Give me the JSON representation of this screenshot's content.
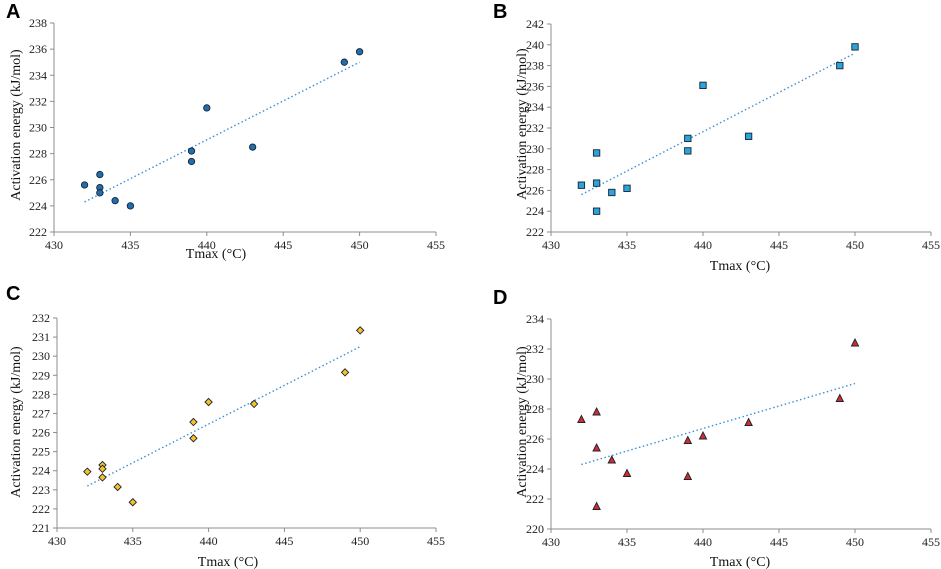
{
  "chart_data": [
    {
      "panel": "A",
      "type": "scatter",
      "marker": "circle",
      "color": "#1f6eb0",
      "xlabel": "Tmax (°C)",
      "ylabel": "Activation energy (kJ/mol)",
      "xlim": [
        430,
        455
      ],
      "xticks": [
        430,
        435,
        440,
        445,
        450,
        455
      ],
      "ylim": [
        222,
        238
      ],
      "yticks": [
        222,
        224,
        226,
        228,
        230,
        232,
        234,
        236,
        238
      ],
      "series": [
        {
          "name": "A",
          "x": [
            432,
            433,
            433,
            433,
            434,
            435,
            439,
            439,
            440,
            443,
            449,
            450
          ],
          "y": [
            225.6,
            226.4,
            225.4,
            225.0,
            224.4,
            224.0,
            228.2,
            227.4,
            231.5,
            228.5,
            235.0,
            235.8
          ]
        }
      ],
      "trendline": {
        "x": [
          432,
          450
        ],
        "y": [
          224.3,
          235.0
        ]
      }
    },
    {
      "panel": "B",
      "type": "scatter",
      "marker": "square",
      "color": "#2ba3dc",
      "xlabel": "Tmax (°C)",
      "ylabel": "Activation energy (kJ/mol)",
      "xlim": [
        430,
        455
      ],
      "xticks": [
        430,
        435,
        440,
        445,
        450,
        455
      ],
      "ylim": [
        222,
        242
      ],
      "yticks": [
        222,
        224,
        226,
        228,
        230,
        232,
        234,
        236,
        238,
        240,
        242
      ],
      "series": [
        {
          "name": "B",
          "x": [
            432,
            433,
            433,
            433,
            434,
            435,
            439,
            439,
            440,
            443,
            449,
            450
          ],
          "y": [
            226.5,
            229.6,
            226.7,
            224.0,
            225.8,
            226.2,
            231.0,
            229.8,
            236.1,
            231.2,
            238.0,
            239.8
          ]
        }
      ],
      "trendline": {
        "x": [
          432,
          450
        ],
        "y": [
          225.6,
          239.2
        ]
      }
    },
    {
      "panel": "C",
      "type": "scatter",
      "marker": "diamond",
      "color": "#f6c227",
      "xlabel": "Tmax (°C)",
      "ylabel": "Activation energy (kJ/mol)",
      "xlim": [
        430,
        455
      ],
      "xticks": [
        430,
        435,
        440,
        445,
        450,
        455
      ],
      "ylim": [
        221,
        232
      ],
      "yticks": [
        221,
        222,
        223,
        224,
        225,
        226,
        227,
        228,
        229,
        230,
        231,
        232
      ],
      "series": [
        {
          "name": "C",
          "x": [
            432,
            433,
            433,
            433,
            434,
            435,
            439,
            439,
            440,
            443,
            449,
            450
          ],
          "y": [
            223.95,
            224.3,
            224.1,
            223.65,
            223.15,
            222.35,
            226.55,
            225.7,
            227.6,
            227.5,
            229.15,
            231.35
          ]
        }
      ],
      "trendline": {
        "x": [
          432,
          450
        ],
        "y": [
          223.2,
          230.5
        ]
      }
    },
    {
      "panel": "D",
      "type": "scatter",
      "marker": "triangle",
      "color": "#d42b2b",
      "xlabel": "Tmax (°C)",
      "ylabel": "Activation energy (kJ/mol)",
      "xlim": [
        430,
        455
      ],
      "xticks": [
        430,
        435,
        440,
        445,
        450,
        455
      ],
      "ylim": [
        220,
        234
      ],
      "yticks": [
        220,
        222,
        224,
        226,
        228,
        230,
        232,
        234
      ],
      "series": [
        {
          "name": "D",
          "x": [
            432,
            433,
            433,
            433,
            434,
            435,
            439,
            439,
            440,
            443,
            449,
            450
          ],
          "y": [
            227.3,
            227.8,
            225.4,
            221.5,
            224.6,
            223.7,
            225.9,
            223.5,
            226.2,
            227.1,
            228.7,
            232.4
          ]
        }
      ],
      "trendline": {
        "x": [
          432,
          450
        ],
        "y": [
          224.3,
          229.7
        ]
      }
    }
  ]
}
